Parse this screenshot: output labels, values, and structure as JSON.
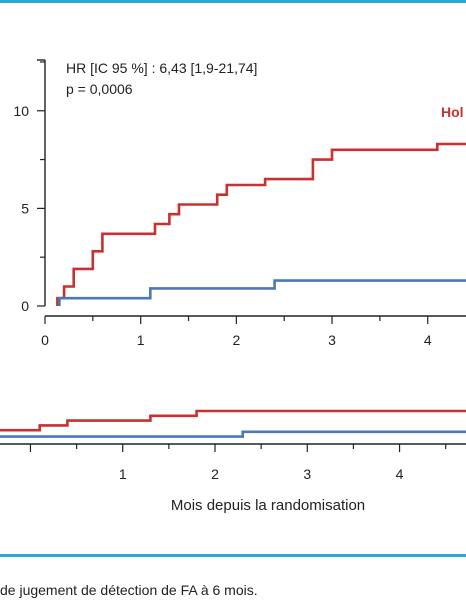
{
  "caption": "de jugement de détection de FA à 6 mois.",
  "colors": {
    "red": "#c8312f",
    "blue": "#4a78b8",
    "rule": "#29a6dc"
  },
  "chart_data": [
    {
      "type": "line",
      "step": true,
      "annotations": [
        "HR [IC 95 %] : 6,43 [1,9-21,74]",
        "p = 0,0006"
      ],
      "legend_label": "Hol",
      "xlim": [
        0,
        4.4
      ],
      "ylim": [
        0,
        12.6
      ],
      "x_ticks": [
        0,
        1,
        2,
        3,
        4
      ],
      "y_ticks": [
        0,
        5,
        10
      ],
      "series": [
        {
          "color": "#c8312f",
          "points": [
            [
              0.13,
              0
            ],
            [
              0.13,
              0.4
            ],
            [
              0.2,
              0.4
            ],
            [
              0.2,
              1.0
            ],
            [
              0.3,
              1.0
            ],
            [
              0.3,
              1.9
            ],
            [
              0.5,
              1.9
            ],
            [
              0.5,
              2.8
            ],
            [
              0.6,
              2.8
            ],
            [
              0.6,
              3.7
            ],
            [
              1.15,
              3.7
            ],
            [
              1.15,
              4.2
            ],
            [
              1.3,
              4.2
            ],
            [
              1.3,
              4.7
            ],
            [
              1.4,
              4.7
            ],
            [
              1.4,
              5.2
            ],
            [
              1.8,
              5.2
            ],
            [
              1.8,
              5.7
            ],
            [
              1.9,
              5.7
            ],
            [
              1.9,
              6.2
            ],
            [
              2.3,
              6.2
            ],
            [
              2.3,
              6.5
            ],
            [
              2.8,
              6.5
            ],
            [
              2.8,
              7.5
            ],
            [
              3.0,
              7.5
            ],
            [
              3.0,
              8.0
            ],
            [
              4.1,
              8.0
            ],
            [
              4.1,
              8.3
            ],
            [
              4.4,
              8.3
            ]
          ]
        },
        {
          "color": "#4a78b8",
          "points": [
            [
              0.15,
              0
            ],
            [
              0.15,
              0.4
            ],
            [
              1.1,
              0.4
            ],
            [
              1.1,
              0.9
            ],
            [
              2.4,
              0.9
            ],
            [
              2.4,
              1.3
            ],
            [
              4.4,
              1.3
            ]
          ]
        }
      ]
    },
    {
      "type": "line",
      "step": true,
      "xlabel": "Mois depuis la randomisation",
      "xlim": [
        -0.33,
        4.72
      ],
      "x_ticks": [
        1,
        2,
        3,
        4
      ],
      "ylim": [
        0,
        1
      ],
      "series": [
        {
          "color": "#c8312f",
          "points": [
            [
              -0.33,
              0.4
            ],
            [
              0.1,
              0.4
            ],
            [
              0.1,
              0.55
            ],
            [
              0.4,
              0.55
            ],
            [
              0.4,
              0.7
            ],
            [
              1.3,
              0.7
            ],
            [
              1.3,
              0.85
            ],
            [
              1.8,
              0.85
            ],
            [
              1.8,
              1.0
            ],
            [
              4.72,
              1.0
            ]
          ]
        },
        {
          "color": "#4a78b8",
          "points": [
            [
              -0.33,
              0.2
            ],
            [
              2.3,
              0.2
            ],
            [
              2.3,
              0.35
            ],
            [
              4.72,
              0.35
            ]
          ]
        }
      ]
    }
  ]
}
